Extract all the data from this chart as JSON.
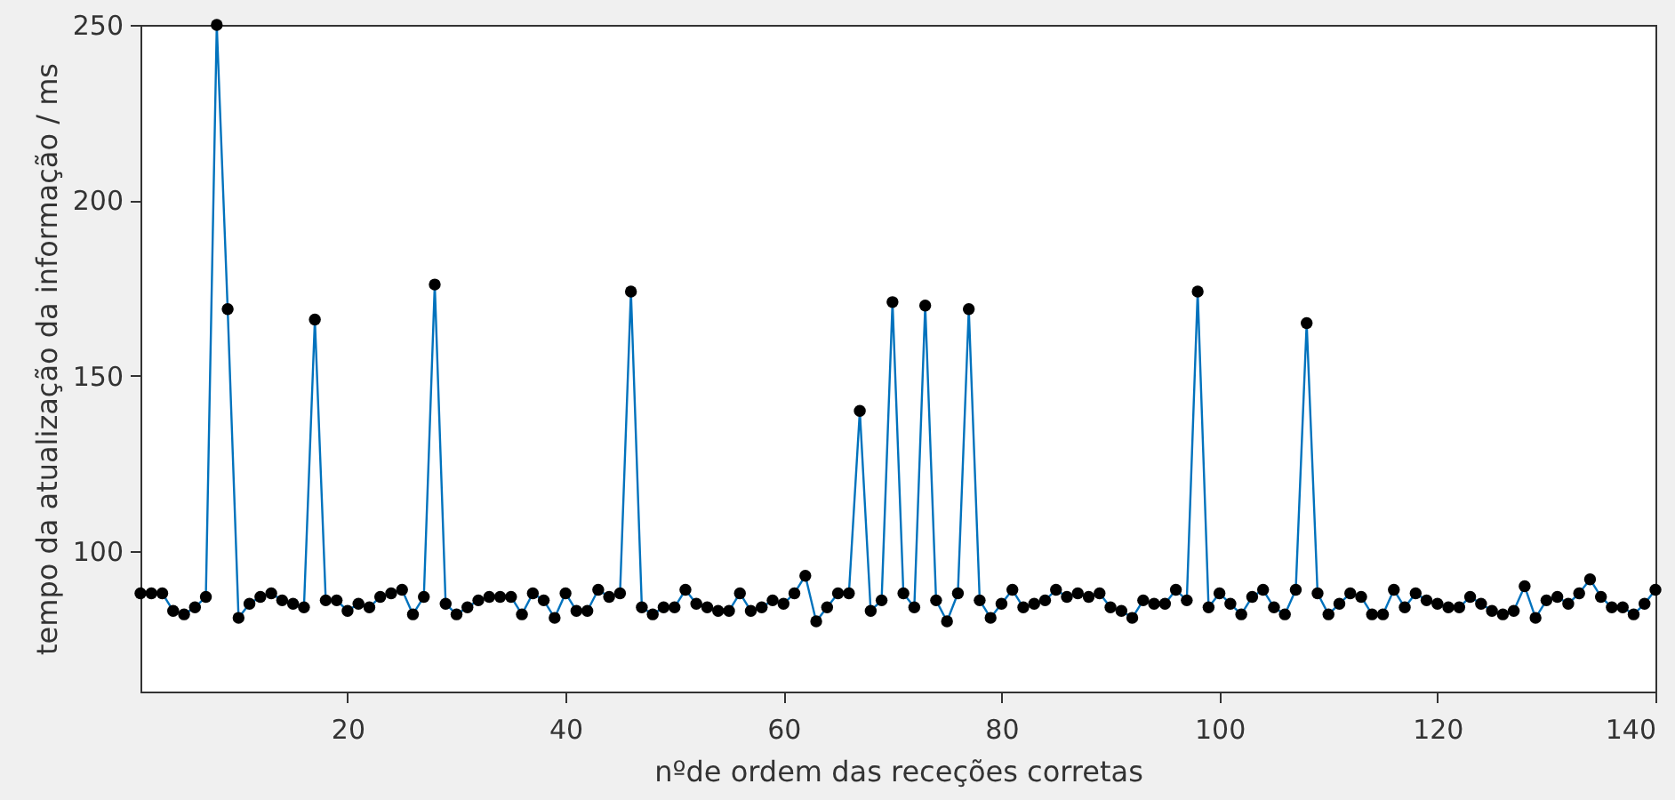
{
  "chart_data": {
    "type": "line",
    "xlabel": "nºde ordem das receções corretas",
    "ylabel": "tempo da atualização da informação / ms",
    "x": [
      1,
      2,
      3,
      4,
      5,
      6,
      7,
      8,
      9,
      10,
      11,
      12,
      13,
      14,
      15,
      16,
      17,
      18,
      19,
      20,
      21,
      22,
      23,
      24,
      25,
      26,
      27,
      28,
      29,
      30,
      31,
      32,
      33,
      34,
      35,
      36,
      37,
      38,
      39,
      40,
      41,
      42,
      43,
      44,
      45,
      46,
      47,
      48,
      49,
      50,
      51,
      52,
      53,
      54,
      55,
      56,
      57,
      58,
      59,
      60,
      61,
      62,
      63,
      64,
      65,
      66,
      67,
      68,
      69,
      70,
      71,
      72,
      73,
      74,
      75,
      76,
      77,
      78,
      79,
      80,
      81,
      82,
      83,
      84,
      85,
      86,
      87,
      88,
      89,
      90,
      91,
      92,
      93,
      94,
      95,
      96,
      97,
      98,
      99,
      100,
      101,
      102,
      103,
      104,
      105,
      106,
      107,
      108,
      109,
      110,
      111,
      112,
      113,
      114,
      115,
      116,
      117,
      118,
      119,
      120,
      121,
      122,
      123,
      124,
      125,
      126,
      127,
      128,
      129,
      130,
      131,
      132,
      133,
      134,
      135,
      136,
      137,
      138,
      139,
      140
    ],
    "series": [
      {
        "color": "#0072bd",
        "values": [
          88,
          88,
          88,
          83,
          82,
          84,
          87,
          250,
          169,
          81,
          85,
          87,
          88,
          86,
          85,
          84,
          166,
          86,
          86,
          83,
          85,
          84,
          87,
          88,
          89,
          82,
          87,
          176,
          85,
          82,
          84,
          86,
          87,
          87,
          87,
          82,
          88,
          86,
          81,
          88,
          83,
          83,
          89,
          87,
          88,
          174,
          84,
          82,
          84,
          84,
          89,
          85,
          84,
          83,
          83,
          88,
          83,
          84,
          86,
          85,
          88,
          93,
          80,
          84,
          88,
          88,
          140,
          83,
          86,
          171,
          88,
          84,
          170,
          86,
          80,
          88,
          169,
          86,
          81,
          85,
          89,
          84,
          85,
          86,
          89,
          87,
          88,
          87,
          88,
          84,
          83,
          81,
          86,
          85,
          85,
          89,
          86,
          174,
          84,
          88,
          85,
          82,
          87,
          89,
          84,
          82,
          89,
          165,
          88,
          82,
          85,
          88,
          87,
          82,
          82,
          89,
          84,
          88,
          86,
          85,
          84,
          84,
          87,
          85,
          83,
          82,
          83,
          90,
          81,
          86,
          87,
          85,
          88,
          92,
          87,
          84,
          84,
          82,
          85,
          89
        ]
      }
    ],
    "xlim": [
      1,
      140
    ],
    "xticks": [
      20,
      40,
      60,
      80,
      100,
      120,
      140
    ],
    "ylim": [
      60,
      250
    ],
    "yticks": [
      100,
      150,
      200,
      250
    ],
    "grid": false,
    "marker": "circle",
    "line_style": "solid"
  }
}
